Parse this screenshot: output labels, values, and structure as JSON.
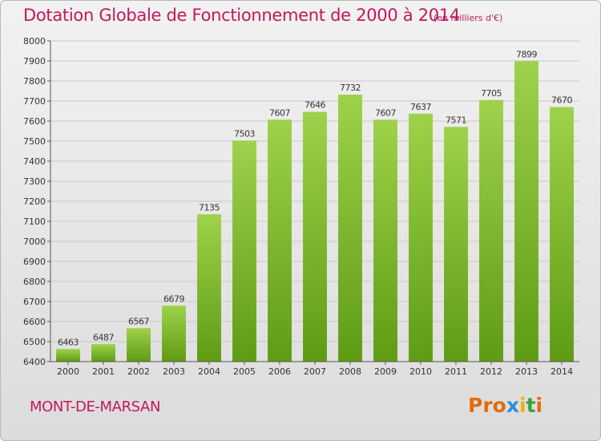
{
  "header": {
    "title": "Dotation Globale de Fonctionnement de 2000 à 2014",
    "subtitle": "(en milliers d'€)"
  },
  "footer": {
    "place": "MONT-DE-MARSAN",
    "logo": "Proxiti"
  },
  "colors": {
    "title": "#c2185b",
    "bar_top": "#9ed24a",
    "bar_bottom": "#5e9c14",
    "logo_letters": [
      "#e36c0a",
      "#e36c0a",
      "#e36c0a",
      "#2b8fd8",
      "#f0b400",
      "#3aa13a",
      "#e36c0a"
    ]
  },
  "chart_data": {
    "type": "bar",
    "categories": [
      "2000",
      "2001",
      "2002",
      "2003",
      "2004",
      "2005",
      "2006",
      "2007",
      "2008",
      "2009",
      "2010",
      "2011",
      "2012",
      "2013",
      "2014"
    ],
    "values": [
      6463,
      6487,
      6567,
      6679,
      7135,
      7503,
      7607,
      7646,
      7732,
      7607,
      7637,
      7571,
      7705,
      7899,
      7670
    ],
    "data_labels": [
      "6463",
      "6487",
      "6567",
      "6679",
      "7135",
      "7503",
      "7607",
      "7646",
      "7732",
      "7607",
      "7637",
      "7571",
      "7705",
      "7899",
      "7670"
    ],
    "yticks": [
      "6400",
      "6500",
      "6600",
      "6700",
      "6800",
      "6900",
      "7000",
      "7100",
      "7200",
      "7300",
      "7400",
      "7500",
      "7600",
      "7700",
      "7800",
      "7900",
      "8000"
    ],
    "ylim": [
      6400,
      8000
    ],
    "grid": true,
    "title": "Dotation Globale de Fonctionnement de 2000 à 2014",
    "xlabel": "",
    "ylabel": ""
  }
}
